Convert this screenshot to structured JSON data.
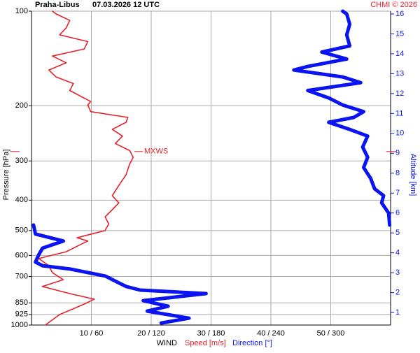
{
  "chart_data": {
    "type": "sounding",
    "title": "Praha-Libus",
    "subtitle": "07.03.2026 12 UTC",
    "credit": "CHMI © 2026",
    "ylabel": "Pressure [hPa]",
    "y2label": "Altitude [km]",
    "xlabel": "WIND",
    "ylim": [
      1000,
      100
    ],
    "ylog": true,
    "yticks": [
      100,
      200,
      300,
      400,
      500,
      600,
      700,
      850,
      925,
      1000
    ],
    "y2lim": [
      0.37,
      16.14
    ],
    "y2ticks": [
      1,
      2,
      3,
      4,
      5,
      6,
      7,
      8,
      9,
      10,
      11,
      12,
      13,
      14,
      15,
      16
    ],
    "xlim": [
      0,
      60
    ],
    "x2lim": [
      0,
      360
    ],
    "xticks": [
      {
        "value": 10,
        "label": "10 / 60"
      },
      {
        "value": 20,
        "label": "20 / 120"
      },
      {
        "value": 30,
        "label": "30 / 180"
      },
      {
        "value": 40,
        "label": "40 / 240"
      },
      {
        "value": 50,
        "label": "50 / 300"
      }
    ],
    "grid": true,
    "annotation": {
      "text": "MXWS",
      "pressure": 280
    },
    "series": [
      {
        "name": "Speed [m/s]",
        "color": "#e8202a",
        "axis": "x",
        "pressure": [
          1000,
          926,
          858,
          827,
          794,
          754,
          717,
          681,
          647,
          614,
          584,
          554,
          540,
          527,
          500,
          476,
          452,
          429,
          408,
          387,
          359,
          332,
          307,
          292,
          278,
          264,
          250,
          238,
          226,
          218,
          209,
          199,
          194,
          179,
          170,
          162,
          154,
          146,
          139,
          132,
          125,
          119,
          113,
          107,
          102,
          100
        ],
        "values": [
          2.3,
          4.7,
          8.8,
          10.5,
          6.4,
          1.8,
          5.3,
          3.5,
          2.9,
          1.2,
          5.8,
          8.2,
          9.4,
          7.6,
          12.3,
          12.9,
          12.3,
          13.5,
          14.6,
          13.5,
          14.6,
          15.8,
          16.4,
          17.0,
          16.4,
          14.0,
          15.2,
          13.5,
          15.8,
          16.1,
          9.9,
          9.4,
          9.9,
          6.4,
          7.0,
          4.1,
          2.9,
          5.8,
          3.5,
          8.8,
          9.4,
          4.7,
          5.8,
          6.4,
          4.1,
          3.5
        ]
      },
      {
        "name": "Direction [°]",
        "color": "#0a14f0",
        "axis": "x2",
        "pressure": [
          985,
          951,
          903,
          871,
          836,
          794,
          774,
          754,
          735,
          698,
          663,
          647,
          630,
          599,
          569,
          540,
          513,
          480,
          null,
          480,
          440,
          408,
          387,
          368,
          341,
          315,
          292,
          271,
          250,
          238,
          226,
          218,
          209,
          199,
          189,
          179,
          169,
          162,
          154,
          150,
          142,
          135,
          129,
          119,
          110,
          102,
          100
        ],
        "values": [
          130,
          158,
          116,
          137,
          112,
          175,
          109,
          95,
          88,
          74,
          39,
          11,
          4,
          7,
          11,
          32,
          4,
          2,
          null,
          359,
          358,
          351,
          353,
          344,
          340,
          333,
          337,
          332,
          337,
          319,
          298,
          323,
          333,
          312,
          298,
          277,
          330,
          312,
          263,
          277,
          316,
          291,
          319,
          316,
          319,
          316,
          312
        ]
      }
    ]
  }
}
